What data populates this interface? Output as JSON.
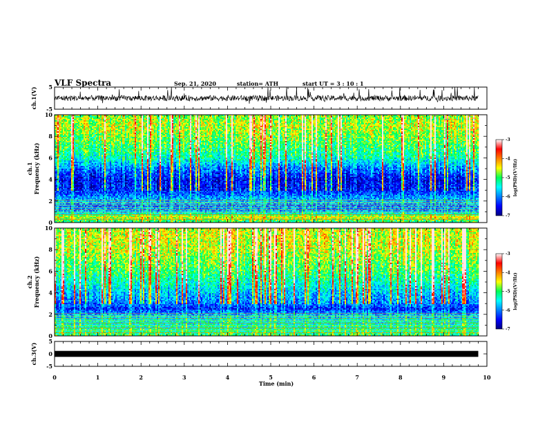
{
  "header": {
    "title": "VLF Spectra",
    "date": "Sep. 21, 2020",
    "station": "station= ATH",
    "start": "start  UT =   3  : 10 : 1"
  },
  "chart_data": [
    {
      "type": "line",
      "panel": "ch1-waveform",
      "ylabel": "ch.1(V)",
      "xlim": [
        0,
        10
      ],
      "ylim": [
        -5,
        5
      ],
      "yticks": [
        "5",
        "-5"
      ],
      "data_end": 9.8,
      "mean": 0,
      "amplitude": 2.5,
      "color": "#000000"
    },
    {
      "type": "heatmap",
      "panel": "ch1-spectrogram",
      "ylabel": "ch.1\nFrequency  (kHz)",
      "xlim": [
        0,
        10
      ],
      "ylim": [
        0,
        10
      ],
      "yticks": [
        "0",
        "2",
        "4",
        "6",
        "8",
        "10"
      ],
      "data_end": 9.8,
      "colorbar": {
        "label": "log(PSD)(V²/Hz)",
        "range": [
          -7,
          -3
        ],
        "ticks": [
          "-3",
          "-4",
          "-5",
          "-6",
          "-7"
        ]
      },
      "profile_kHz": [
        0,
        0.5,
        1.0,
        1.5,
        2.0,
        3.0,
        4.0,
        5.0,
        6.0,
        7.0,
        8.0,
        9.0,
        10.0
      ],
      "profile_log_psd": [
        -5.2,
        -4.5,
        -5.8,
        -6.0,
        -5.7,
        -6.4,
        -6.5,
        -6.0,
        -5.3,
        -5.0,
        -4.8,
        -4.6,
        -4.8
      ]
    },
    {
      "type": "heatmap",
      "panel": "ch2-spectrogram",
      "ylabel": "ch.2\nFrequency  (kHz)",
      "xlim": [
        0,
        10
      ],
      "ylim": [
        0,
        10
      ],
      "yticks": [
        "0",
        "2",
        "4",
        "6",
        "8",
        "10"
      ],
      "data_end": 9.8,
      "colorbar": {
        "label": "log(PSD)(V²/Hz)",
        "range": [
          -7,
          -3
        ],
        "ticks": [
          "-3",
          "-4",
          "-5",
          "-6",
          "-7"
        ]
      },
      "profile_kHz": [
        0,
        0.5,
        1.0,
        1.5,
        2.0,
        2.5,
        3.0,
        4.0,
        5.0,
        6.0,
        7.0,
        8.0,
        9.0,
        10.0
      ],
      "profile_log_psd": [
        -5.0,
        -5.2,
        -5.4,
        -5.5,
        -5.8,
        -6.4,
        -6.0,
        -5.7,
        -5.3,
        -5.0,
        -4.8,
        -4.6,
        -4.5,
        -4.6
      ]
    },
    {
      "type": "line",
      "panel": "ch3-waveform",
      "ylabel": "ch.3(V)",
      "xlim": [
        0,
        10
      ],
      "ylim": [
        -5,
        5
      ],
      "yticks": [
        "5",
        "0",
        "-5"
      ],
      "data_end": 9.8,
      "mean": 0,
      "amplitude": 0.3,
      "color": "#000000"
    }
  ],
  "xaxis": {
    "label": "Time  (min)",
    "ticks": [
      "0",
      "1",
      "2",
      "3",
      "4",
      "5",
      "6",
      "7",
      "8",
      "9",
      "10"
    ]
  }
}
